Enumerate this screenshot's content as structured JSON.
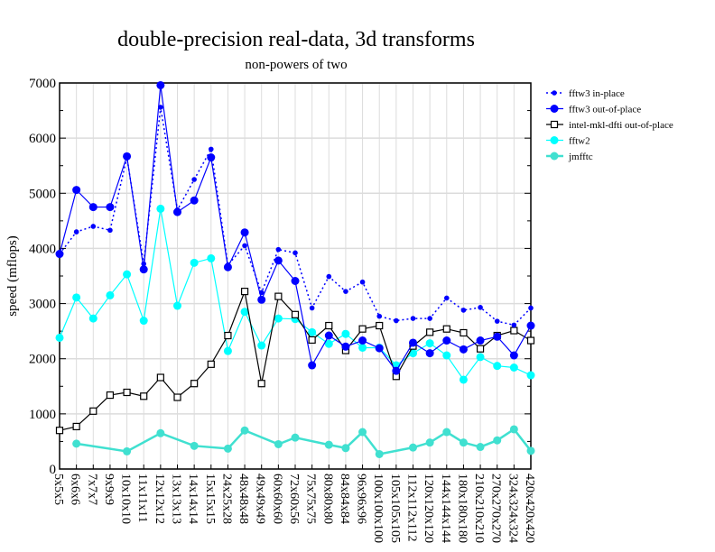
{
  "chart_data": {
    "type": "line",
    "title": "double-precision real-data, 3d transforms",
    "subtitle": "non-powers of two",
    "xlabel": "",
    "ylabel": "speed (mflops)",
    "ylim": [
      0,
      7000
    ],
    "yticks": [
      0,
      1000,
      2000,
      3000,
      4000,
      5000,
      6000,
      7000
    ],
    "grid": true,
    "legend_position": "right",
    "categories": [
      "5x5x5",
      "6x6x6",
      "7x7x7",
      "9x9x9",
      "10x10x10",
      "11x11x11",
      "12x12x12",
      "13x13x13",
      "14x14x14",
      "15x15x15",
      "24x25x28",
      "48x48x48",
      "49x49x49",
      "60x60x60",
      "72x60x56",
      "75x75x75",
      "80x80x80",
      "84x84x84",
      "96x96x96",
      "100x100x100",
      "105x105x105",
      "112x112x112",
      "120x120x120",
      "144x144x144",
      "180x180x180",
      "210x210x210",
      "270x270x270",
      "324x324x324",
      "420x420x420"
    ],
    "series": [
      {
        "name": "fftw3 in-place",
        "color": "#0000ff",
        "style": "dotted",
        "marker": "small-dot",
        "values": [
          3900,
          4300,
          4400,
          4330,
          5650,
          3720,
          6560,
          4700,
          5250,
          5800,
          3700,
          4050,
          3200,
          3980,
          3920,
          2920,
          3490,
          3220,
          3390,
          2770,
          2690,
          2730,
          2730,
          3100,
          2880,
          2930,
          2680,
          2610,
          2920
        ]
      },
      {
        "name": "fftw3 out-of-place",
        "color": "#0000ff",
        "style": "solid",
        "marker": "dot",
        "values": [
          3900,
          5060,
          4750,
          4750,
          5670,
          3620,
          6960,
          4660,
          4870,
          5650,
          3660,
          4290,
          3070,
          3780,
          3410,
          1880,
          2420,
          2220,
          2330,
          2190,
          1780,
          2290,
          2100,
          2330,
          2170,
          2330,
          2400,
          2060,
          2600
        ]
      },
      {
        "name": "intel-mkl-dfti out-of-place",
        "color": "#000000",
        "style": "solid",
        "marker": "square",
        "values": [
          700,
          770,
          1050,
          1340,
          1390,
          1320,
          1660,
          1300,
          1550,
          1900,
          2420,
          3220,
          1550,
          3130,
          2800,
          2340,
          2600,
          2150,
          2540,
          2600,
          1680,
          2230,
          2480,
          2540,
          2470,
          2180,
          2420,
          2510,
          2330
        ]
      },
      {
        "name": "fftw2",
        "color": "#00ffff",
        "style": "solid",
        "marker": "dot",
        "values": [
          2380,
          3110,
          2730,
          3150,
          3530,
          2690,
          4720,
          2960,
          3740,
          3820,
          2140,
          2850,
          2240,
          2730,
          2720,
          2480,
          2270,
          2450,
          2200,
          2200,
          1880,
          2100,
          2280,
          2060,
          1620,
          2030,
          1870,
          1840,
          1700
        ]
      },
      {
        "name": "jmfftc",
        "color": "#40e0d0",
        "style": "thick",
        "marker": "dot",
        "values": [
          null,
          460,
          null,
          null,
          320,
          null,
          650,
          null,
          420,
          null,
          370,
          700,
          null,
          450,
          570,
          null,
          440,
          380,
          670,
          270,
          null,
          390,
          480,
          670,
          480,
          400,
          520,
          720,
          330
        ]
      }
    ]
  }
}
